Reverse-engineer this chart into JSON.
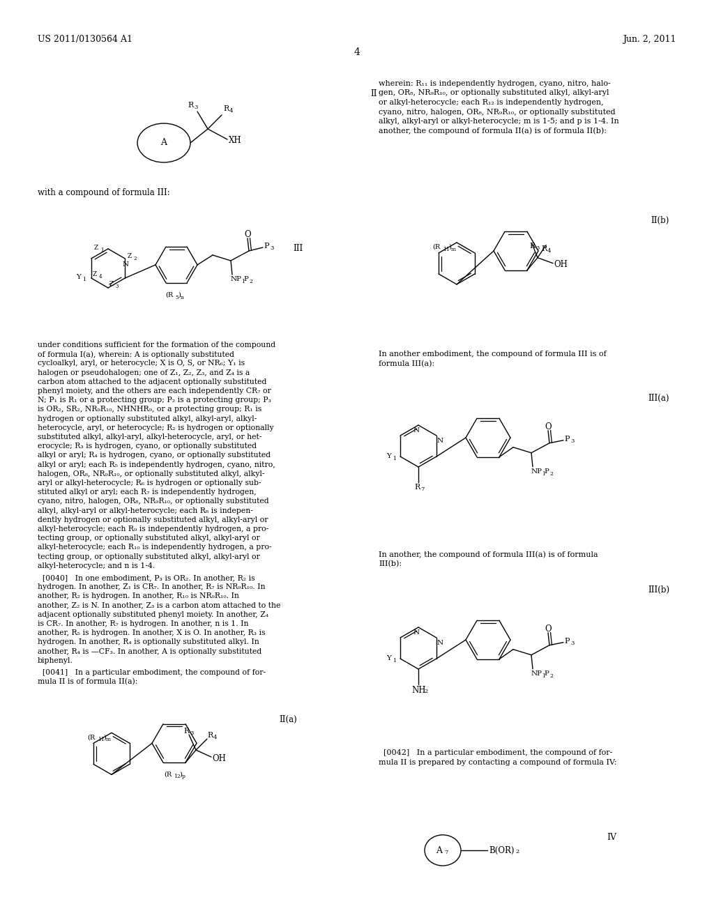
{
  "background_color": "#ffffff",
  "header_left": "US 2011/0130564 A1",
  "header_right": "Jun. 2, 2011",
  "page_number": "4",
  "right_col_text": [
    "wherein: R₁₁ is independently hydrogen, cyano, nitro, halo-",
    "gen, OR₈, NR₉R₁₀, or optionally substituted alkyl, alkyl-aryl",
    "or alkyl-heterocycle; each R₁₂ is independently hydrogen,",
    "cyano, nitro, halogen, OR₈, NR₉R₁₀, or optionally substituted",
    "alkyl, alkyl-aryl or alkyl-heterocycle; m is 1-5; and p is 1-4. In",
    "another, the compound of formula II(a) is of formula II(b):"
  ],
  "body_text": [
    "under conditions sufficient for the formation of the compound",
    "of formula I(a), wherein: A is optionally substituted",
    "cycloalkyl, aryl, or heterocycle; X is O, S, or NR₆; Y₁ is",
    "halogen or pseudohalogen; one of Z₁, Z₂, Z₃, and Z₄ is a",
    "carbon atom attached to the adjacent optionally substituted",
    "phenyl moiety, and the others are each independently CR₇ or",
    "N; P₁ is R₁ or a protecting group; P₂ is a protecting group; P₃",
    "is OR₂, SR₂, NR₉R₁₀, NHNHR₉, or a protecting group; R₁ is",
    "hydrogen or optionally substituted alkyl, alkyl-aryl, alkyl-",
    "heterocycle, aryl, or heterocycle; R₂ is hydrogen or optionally",
    "substituted alkyl, alkyl-aryl, alkyl-heterocycle, aryl, or het-",
    "erocycle; R₃ is hydrogen, cyano, or optionally substituted",
    "alkyl or aryl; R₄ is hydrogen, cyano, or optionally substituted",
    "alkyl or aryl; each R₅ is independently hydrogen, cyano, nitro,",
    "halogen, OR₈, NR₉R₁₀, or optionally substituted alkyl, alkyl-",
    "aryl or alkyl-heterocycle; R₆ is hydrogen or optionally sub-",
    "stituted alkyl or aryl; each R₇ is independently hydrogen,",
    "cyano, nitro, halogen, OR₈, NR₉R₁₀, or optionally substituted",
    "alkyl, alkyl-aryl or alkyl-heterocycle; each R₈ is indepen-",
    "dently hydrogen or optionally substituted alkyl, alkyl-aryl or",
    "alkyl-heterocycle; each R₉ is independently hydrogen, a pro-",
    "tecting group, or optionally substituted alkyl, alkyl-aryl or",
    "alkyl-heterocycle; each R₁₀ is independently hydrogen, a pro-",
    "tecting group, or optionally substituted alkyl, alkyl-aryl or",
    "alkyl-heterocycle; and n is 1-4."
  ],
  "p40_text": [
    "  [0040]   In one embodiment, P₃ is OR₂. In another, R₂ is",
    "hydrogen. In another, Z₁ is CR₇. In another, R₇ is NR₉R₁₀. In",
    "another, R₂ is hydrogen. In another, R₁₀ is NR₉R₁₀. In",
    "another, Z₂ is N. In another, Z₃ is a carbon atom attached to the",
    "adjacent optionally substituted phenyl moiety. In another, Z₄",
    "is CR₇. In another, R₇ is hydrogen. In another, n is 1. In",
    "another, R₅ is hydrogen. In another, X is O. In another, R₃ is",
    "hydrogen. In another, R₄ is optionally substituted alkyl. In",
    "another, R₄ is —CF₃. In another, A is optionally substituted",
    "biphenyl."
  ],
  "p41_text": [
    "  [0041]   In a particular embodiment, the compound of for-",
    "mula II is of formula II(a):"
  ],
  "p42_text": [
    "  [0042]   In a particular embodiment, the compound of for-",
    "mula II is prepared by contacting a compound of formula IV:"
  ],
  "right_col2_text1": "In another embodiment, the compound of formula III is of",
  "right_col2_text2": "formula III(a):",
  "right_col2_text3": "In another, the compound of formula III(a) is of formula",
  "right_col2_text4": "III(b):"
}
